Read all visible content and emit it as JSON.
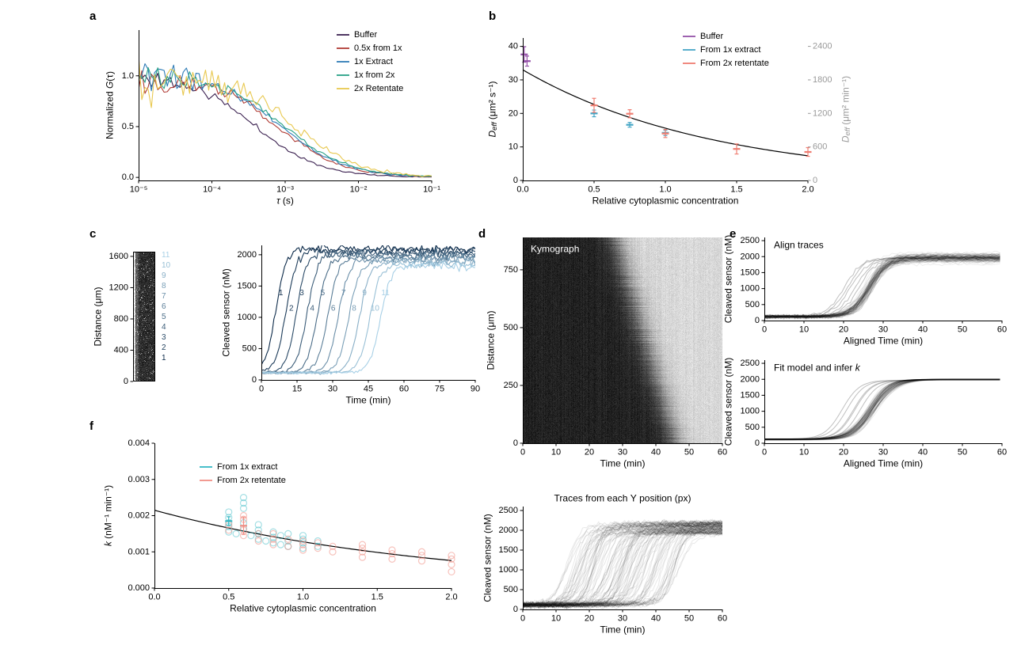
{
  "panels": {
    "a": "a",
    "b": "b",
    "c": "c",
    "d": "d",
    "e": "e",
    "f": "f"
  },
  "chart_data": [
    {
      "panel": "a",
      "type": "line",
      "xscale": "log",
      "xlabel": [
        {
          "t": "τ",
          "i": true
        },
        {
          "t": " (s)"
        }
      ],
      "ylabel": [
        {
          "t": "Normalized "
        },
        {
          "t": "G",
          "i": true
        },
        {
          "t": "(τ)"
        }
      ],
      "xlim": [
        1e-05,
        0.1
      ],
      "ylim": [
        -0.03,
        1.45
      ],
      "xticks": [
        {
          "v": 1e-05,
          "l": "10⁻⁵"
        },
        {
          "v": 0.0001,
          "l": "10⁻⁴"
        },
        {
          "v": 0.001,
          "l": "10⁻³"
        },
        {
          "v": 0.01,
          "l": "10⁻²"
        },
        {
          "v": 0.1,
          "l": "10⁻¹"
        }
      ],
      "yticks": [
        {
          "v": 0,
          "l": "0.0"
        },
        {
          "v": 0.5,
          "l": "0.5"
        },
        {
          "v": 1,
          "l": "1.0"
        }
      ],
      "series": [
        {
          "name": "Buffer",
          "color": "#3b2150",
          "tau_half": 0.0004,
          "noise": 0.055,
          "seed": 11
        },
        {
          "name": "0.5x from 1x",
          "color": "#b03b34",
          "tau_half": 0.0008,
          "noise": 0.09,
          "seed": 22
        },
        {
          "name": "1x Extract",
          "color": "#2d7bb6",
          "tau_half": 0.0009,
          "noise": 0.085,
          "seed": 33
        },
        {
          "name": "1x from 2x",
          "color": "#27a186",
          "tau_half": 0.001,
          "noise": 0.085,
          "seed": 44
        },
        {
          "name": "2x Retentate",
          "color": "#e8c84f",
          "tau_half": 0.0014,
          "noise": 0.14,
          "seed": 55
        }
      ]
    },
    {
      "panel": "b",
      "type": "scatter",
      "xlabel": "Relative cytoplasmic concentration",
      "ylabel_left": [
        {
          "t": "D",
          "i": true
        },
        {
          "t": "eff",
          "i": true,
          "sub": true
        },
        {
          "t": " (μm² s⁻¹)"
        }
      ],
      "ylabel_right": [
        {
          "t": "D",
          "i": true
        },
        {
          "t": "eff",
          "i": true,
          "sub": true
        },
        {
          "t": " (μm² min⁻¹)"
        }
      ],
      "xlim": [
        0,
        2
      ],
      "ylim_left": [
        0,
        42.5
      ],
      "ylim_right": [
        0,
        2550
      ],
      "xticks": [
        {
          "v": 0,
          "l": "0.0"
        },
        {
          "v": 0.5,
          "l": "0.5"
        },
        {
          "v": 1,
          "l": "1.0"
        },
        {
          "v": 1.5,
          "l": "1.5"
        },
        {
          "v": 2,
          "l": "2.0"
        }
      ],
      "yticks_left": [
        0,
        10,
        20,
        30,
        40
      ],
      "yticks_right": [
        0,
        600,
        1200,
        1800,
        2400
      ],
      "colors": {
        "buffer": "#9450a8",
        "from_1x": "#45a6c6",
        "from_2x": "#ef7e72"
      },
      "legend": [
        "Buffer",
        "From 1x extract",
        "From 2x retentate"
      ],
      "buffer": [
        {
          "x": 0.01,
          "y": 37.6,
          "e": 2.3
        },
        {
          "x": 0.03,
          "y": 35.6,
          "e": 1.5
        }
      ],
      "from_1x": [
        {
          "x": 0.5,
          "y": 20.0,
          "e": 1.0
        },
        {
          "x": 0.75,
          "y": 16.6,
          "e": 0.7
        },
        {
          "x": 1.0,
          "y": 14.2,
          "e": 0.8
        }
      ],
      "from_2x": [
        {
          "x": 0.5,
          "y": 22.4,
          "e": 2.1
        },
        {
          "x": 0.75,
          "y": 19.9,
          "e": 1.2
        },
        {
          "x": 1.0,
          "y": 14.0,
          "e": 1.2
        },
        {
          "x": 1.5,
          "y": 9.4,
          "e": 1.5
        },
        {
          "x": 2.0,
          "y": 8.5,
          "e": 1.3
        }
      ],
      "fit": {
        "D0": 33,
        "rate": 0.75
      }
    },
    {
      "panel": "c",
      "type": "line",
      "strip": {
        "ylabel": "Distance (μm)",
        "yticks": [
          0,
          400,
          800,
          1200,
          1600
        ],
        "labels": [
          "11",
          "10",
          "9",
          "8",
          "7",
          "6",
          "5",
          "4",
          "3",
          "2",
          "1"
        ],
        "seed": 77
      },
      "xlabel": "Time (min)",
      "ylabel": "Cleaved sensor (nM)",
      "xlim": [
        0,
        90
      ],
      "ylim": [
        0,
        2150
      ],
      "xticks": [
        0,
        15,
        30,
        45,
        60,
        75,
        90
      ],
      "yticks": [
        0,
        500,
        1000,
        1500,
        2000
      ],
      "t0": [
        6,
        10.4,
        14.8,
        19.2,
        23.6,
        28,
        32.4,
        36.8,
        41.2,
        45.6,
        50
      ],
      "plateau_start": 2100,
      "plateau_step": 28,
      "base": 115,
      "color_dark": "#0d2b4a",
      "color_light": "#a8d0e6",
      "seed": 7
    },
    {
      "panel": "d",
      "type": "heatmap",
      "kymo": {
        "title": "Kymograph",
        "xlabel": "Time (min)",
        "ylabel": "Distance (μm)",
        "xlim": [
          0,
          60
        ],
        "ylim": [
          0,
          890
        ],
        "xticks": [
          0,
          10,
          20,
          30,
          40,
          50,
          60
        ],
        "yticks": [
          0,
          250,
          500,
          750
        ],
        "t_front_top": 28,
        "t_front_bottom": 46,
        "seed": 99
      },
      "traces": {
        "title": "Traces from each Y position (px)",
        "xlabel": "Time (min)",
        "ylabel": "Cleaved sensor (nM)",
        "xlim": [
          0,
          60
        ],
        "ylim": [
          0,
          2600
        ],
        "xticks": [
          0,
          10,
          20,
          30,
          40,
          50,
          60
        ],
        "yticks": [
          0,
          500,
          1000,
          1500,
          2000,
          2500
        ],
        "n": 115,
        "seed": 13
      }
    },
    {
      "panel": "e",
      "type": "line",
      "align": {
        "title": "Align traces",
        "xlabel": "Aligned Time (min)",
        "ylabel": "Cleaved sensor (nM)",
        "xlim": [
          0,
          60
        ],
        "ylim": [
          0,
          2600
        ],
        "xticks": [
          0,
          10,
          20,
          30,
          40,
          50,
          60
        ],
        "yticks": [
          0,
          500,
          1000,
          1500,
          2000,
          2500
        ],
        "n": 90,
        "t0": 26.5,
        "seed": 5
      },
      "fit": {
        "title": [
          {
            "t": "Fit model and infer "
          },
          {
            "t": "k",
            "i": true
          }
        ],
        "xlabel": "Aligned Time (min)",
        "ylabel": "Cleaved sensor (nM)",
        "xlim": [
          0,
          60
        ],
        "ylim": [
          0,
          2600
        ],
        "xticks": [
          0,
          10,
          20,
          30,
          40,
          50,
          60
        ],
        "yticks": [
          0,
          500,
          1000,
          1500,
          2000,
          2500
        ],
        "n": 90,
        "t0": 27,
        "seed": 6
      }
    },
    {
      "panel": "f",
      "type": "scatter",
      "xlabel": "Relative cytoplasmic concentration",
      "ylabel": [
        {
          "t": "k",
          "i": true
        },
        {
          "t": " (nM⁻¹ min⁻¹)"
        }
      ],
      "xlim": [
        0,
        2
      ],
      "ylim": [
        0,
        0.004
      ],
      "xticks": [
        {
          "v": 0,
          "l": "0.0"
        },
        {
          "v": 0.5,
          "l": "0.5"
        },
        {
          "v": 1,
          "l": "1.0"
        },
        {
          "v": 1.5,
          "l": "1.5"
        },
        {
          "v": 2,
          "l": "2.0"
        }
      ],
      "yticks": [
        {
          "v": 0,
          "l": "0.000"
        },
        {
          "v": 0.001,
          "l": "0.001"
        },
        {
          "v": 0.002,
          "l": "0.002"
        },
        {
          "v": 0.003,
          "l": "0.003"
        },
        {
          "v": 0.004,
          "l": "0.004"
        }
      ],
      "colors": {
        "from_1x": "#35b8c4",
        "from_2x": "#f08f85"
      },
      "legend": [
        "From 1x extract",
        "From 2x retentate"
      ],
      "points_1x": [
        [
          0.5,
          0.00155
        ],
        [
          0.5,
          0.0017
        ],
        [
          0.5,
          0.0018
        ],
        [
          0.5,
          0.00195
        ],
        [
          0.5,
          0.0021
        ],
        [
          0.55,
          0.0015
        ],
        [
          0.6,
          0.00165
        ],
        [
          0.6,
          0.0018
        ],
        [
          0.6,
          0.0022
        ],
        [
          0.6,
          0.00235
        ],
        [
          0.6,
          0.0025
        ],
        [
          0.65,
          0.00145
        ],
        [
          0.7,
          0.00135
        ],
        [
          0.7,
          0.0015
        ],
        [
          0.7,
          0.0016
        ],
        [
          0.7,
          0.00175
        ],
        [
          0.75,
          0.0013
        ],
        [
          0.8,
          0.00125
        ],
        [
          0.8,
          0.0014
        ],
        [
          0.8,
          0.00155
        ],
        [
          0.85,
          0.0012
        ],
        [
          0.85,
          0.00145
        ],
        [
          0.9,
          0.00115
        ],
        [
          0.9,
          0.0013
        ],
        [
          0.9,
          0.0015
        ],
        [
          1.0,
          0.0011
        ],
        [
          1.0,
          0.00125
        ],
        [
          1.0,
          0.00135
        ],
        [
          1.0,
          0.00145
        ],
        [
          1.1,
          0.00115
        ],
        [
          1.1,
          0.0013
        ]
      ],
      "points_2x": [
        [
          0.5,
          0.0016
        ],
        [
          0.5,
          0.00175
        ],
        [
          0.6,
          0.00145
        ],
        [
          0.6,
          0.0016
        ],
        [
          0.6,
          0.0019
        ],
        [
          0.6,
          0.002
        ],
        [
          0.7,
          0.0013
        ],
        [
          0.7,
          0.0015
        ],
        [
          0.8,
          0.0012
        ],
        [
          0.8,
          0.00135
        ],
        [
          0.8,
          0.0015
        ],
        [
          0.9,
          0.00115
        ],
        [
          0.9,
          0.00135
        ],
        [
          1.0,
          0.00105
        ],
        [
          1.0,
          0.0012
        ],
        [
          1.0,
          0.0013
        ],
        [
          1.1,
          0.0011
        ],
        [
          1.1,
          0.00125
        ],
        [
          1.2,
          0.001
        ],
        [
          1.2,
          0.00115
        ],
        [
          1.4,
          0.00085
        ],
        [
          1.4,
          0.001
        ],
        [
          1.4,
          0.0011
        ],
        [
          1.4,
          0.0012
        ],
        [
          1.6,
          0.0008
        ],
        [
          1.6,
          0.00095
        ],
        [
          1.6,
          0.00105
        ],
        [
          1.8,
          0.00075
        ],
        [
          1.8,
          0.0009
        ],
        [
          1.8,
          0.001
        ],
        [
          2.0,
          0.00045
        ],
        [
          2.0,
          0.00065
        ],
        [
          2.0,
          0.0008
        ],
        [
          2.0,
          0.0009
        ]
      ],
      "err_1x": {
        "x": 0.5,
        "y": 0.00185,
        "e": 0.00012
      },
      "err_2x": {
        "x": 0.6,
        "y": 0.00172,
        "e": 0.00024
      },
      "fit": {
        "k0": 0.00215,
        "rate": 0.52
      }
    }
  ]
}
